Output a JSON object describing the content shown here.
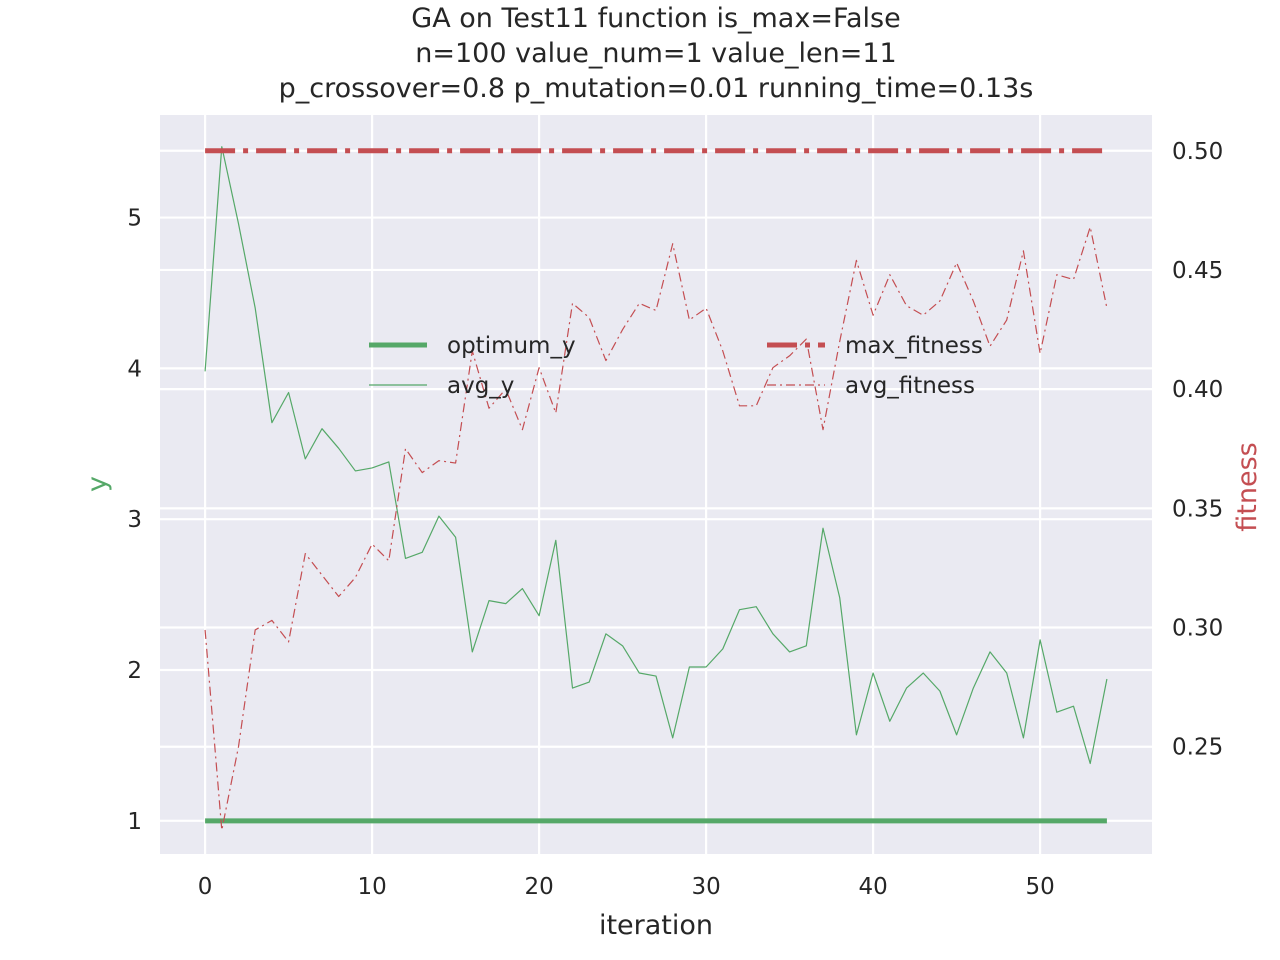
{
  "chart_data": {
    "type": "line",
    "title": [
      "GA on Test11 function  is_max=False",
      "n=100  value_num=1  value_len=11",
      "p_crossover=0.8  p_mutation=0.01 running_time=0.13s"
    ],
    "xlabel": "iteration",
    "ylabel_left": "y",
    "ylabel_right": "fitness",
    "xlim": [
      -2.7,
      56.7
    ],
    "ylim_left": [
      0.78,
      5.68
    ],
    "ylim_right": [
      0.205,
      0.515
    ],
    "x_ticks": [
      "0",
      "10",
      "20",
      "30",
      "40",
      "50"
    ],
    "y_left_ticks": [
      "1",
      "2",
      "3",
      "4",
      "5"
    ],
    "y_right_ticks": [
      "0.25",
      "0.30",
      "0.35",
      "0.40",
      "0.45",
      "0.50"
    ],
    "grid": true,
    "legend_left": [
      "optimum_y",
      "avg_y"
    ],
    "legend_right": [
      "max_fitness",
      "avg_fitness"
    ],
    "colors": {
      "green": "#55a868",
      "red": "#c44e52",
      "grid_bg": "#eaeaf2"
    },
    "series": [
      {
        "name": "optimum_y",
        "axis": "left",
        "style": "solid",
        "weight": "thick",
        "color": "#55a868",
        "values": [
          1,
          1,
          1,
          1,
          1,
          1,
          1,
          1,
          1,
          1,
          1,
          1,
          1,
          1,
          1,
          1,
          1,
          1,
          1,
          1,
          1,
          1,
          1,
          1,
          1,
          1,
          1,
          1,
          1,
          1,
          1,
          1,
          1,
          1,
          1,
          1,
          1,
          1,
          1,
          1,
          1,
          1,
          1,
          1,
          1,
          1,
          1,
          1,
          1,
          1,
          1,
          1,
          1,
          1,
          1
        ]
      },
      {
        "name": "avg_y",
        "axis": "left",
        "style": "solid",
        "weight": "thin",
        "color": "#55a868",
        "values": [
          3.98,
          5.47,
          4.96,
          4.4,
          3.64,
          3.84,
          3.4,
          3.6,
          3.47,
          3.32,
          3.34,
          3.38,
          2.74,
          2.78,
          3.02,
          2.88,
          2.12,
          2.46,
          2.44,
          2.54,
          2.36,
          2.86,
          1.88,
          1.92,
          2.24,
          2.16,
          1.98,
          1.96,
          1.55,
          2.02,
          2.02,
          2.14,
          2.4,
          2.42,
          2.24,
          2.12,
          2.16,
          2.94,
          2.48,
          1.57,
          1.98,
          1.66,
          1.88,
          1.98,
          1.86,
          1.57,
          1.88,
          2.12,
          1.98,
          1.55,
          2.2,
          1.72,
          1.76,
          1.38,
          1.94
        ]
      },
      {
        "name": "max_fitness",
        "axis": "right",
        "style": "dashdot",
        "weight": "thick",
        "color": "#c44e52",
        "values": [
          0.5,
          0.5,
          0.5,
          0.5,
          0.5,
          0.5,
          0.5,
          0.5,
          0.5,
          0.5,
          0.5,
          0.5,
          0.5,
          0.5,
          0.5,
          0.5,
          0.5,
          0.5,
          0.5,
          0.5,
          0.5,
          0.5,
          0.5,
          0.5,
          0.5,
          0.5,
          0.5,
          0.5,
          0.5,
          0.5,
          0.5,
          0.5,
          0.5,
          0.5,
          0.5,
          0.5,
          0.5,
          0.5,
          0.5,
          0.5,
          0.5,
          0.5,
          0.5,
          0.5,
          0.5,
          0.5,
          0.5,
          0.5,
          0.5,
          0.5,
          0.5,
          0.5,
          0.5,
          0.5,
          0.5
        ]
      },
      {
        "name": "avg_fitness",
        "axis": "right",
        "style": "dashdot",
        "weight": "thin",
        "color": "#c44e52",
        "values": [
          0.299,
          0.215,
          0.25,
          0.299,
          0.303,
          0.294,
          0.331,
          0.322,
          0.313,
          0.321,
          0.335,
          0.328,
          0.375,
          0.365,
          0.37,
          0.369,
          0.416,
          0.392,
          0.4,
          0.383,
          0.409,
          0.39,
          0.436,
          0.43,
          0.412,
          0.425,
          0.436,
          0.433,
          0.461,
          0.429,
          0.434,
          0.416,
          0.393,
          0.393,
          0.409,
          0.414,
          0.421,
          0.383,
          0.42,
          0.454,
          0.431,
          0.448,
          0.435,
          0.431,
          0.437,
          0.453,
          0.437,
          0.418,
          0.429,
          0.458,
          0.415,
          0.448,
          0.446,
          0.468,
          0.434
        ]
      }
    ]
  }
}
